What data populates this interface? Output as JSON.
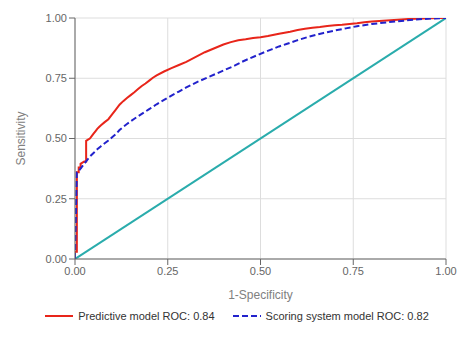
{
  "chart_data": {
    "type": "line",
    "title": "",
    "xlabel": "1-Specificity",
    "ylabel": "Sensitivity",
    "xlim": [
      0.0,
      1.0
    ],
    "ylim": [
      0.0,
      1.0
    ],
    "xticks": [
      {
        "value": 0.0,
        "label": "0.00"
      },
      {
        "value": 0.25,
        "label": "0.25"
      },
      {
        "value": 0.5,
        "label": "0.50"
      },
      {
        "value": 0.75,
        "label": "0.75"
      },
      {
        "value": 1.0,
        "label": "1.00"
      }
    ],
    "yticks": [
      {
        "value": 0.0,
        "label": "0.00"
      },
      {
        "value": 0.25,
        "label": "0.25"
      },
      {
        "value": 0.5,
        "label": "0.50"
      },
      {
        "value": 0.75,
        "label": "0.75"
      },
      {
        "value": 1.0,
        "label": "1.00"
      }
    ],
    "grid": true,
    "legend": "bottom",
    "series": [
      {
        "color": "#2aacac",
        "line_style": "solid",
        "x": [
          0,
          1
        ],
        "values": [
          0,
          1
        ]
      },
      {
        "name": "Predictive model ROC: 0.84",
        "color": "#e8251a",
        "line_style": "solid",
        "x": [
          0.0,
          0.0,
          0.005,
          0.005,
          0.01,
          0.01,
          0.015,
          0.015,
          0.02,
          0.025,
          0.03,
          0.03,
          0.035,
          0.04,
          0.045,
          0.05,
          0.055,
          0.06,
          0.065,
          0.07,
          0.08,
          0.09,
          0.1,
          0.11,
          0.12,
          0.13,
          0.14,
          0.15,
          0.16,
          0.17,
          0.18,
          0.19,
          0.2,
          0.21,
          0.22,
          0.24,
          0.26,
          0.28,
          0.3,
          0.35,
          0.4,
          0.42,
          0.44,
          0.46,
          0.48,
          0.5,
          0.52,
          0.55,
          0.58,
          0.6,
          0.62,
          0.64,
          0.66,
          0.68,
          0.7,
          0.72,
          0.74,
          0.76,
          0.78,
          0.8,
          0.82,
          0.84,
          0.86,
          0.88,
          0.9,
          0.92,
          0.94,
          0.96,
          0.98,
          1.0
        ],
        "values": [
          0.0,
          0.03,
          0.03,
          0.36,
          0.36,
          0.38,
          0.38,
          0.395,
          0.4,
          0.405,
          0.405,
          0.49,
          0.495,
          0.5,
          0.51,
          0.52,
          0.53,
          0.54,
          0.548,
          0.555,
          0.568,
          0.58,
          0.6,
          0.62,
          0.64,
          0.655,
          0.668,
          0.68,
          0.692,
          0.705,
          0.718,
          0.728,
          0.74,
          0.752,
          0.762,
          0.778,
          0.792,
          0.805,
          0.818,
          0.858,
          0.89,
          0.9,
          0.908,
          0.912,
          0.917,
          0.92,
          0.925,
          0.935,
          0.943,
          0.95,
          0.955,
          0.96,
          0.963,
          0.967,
          0.97,
          0.972,
          0.975,
          0.978,
          0.982,
          0.985,
          0.988,
          0.99,
          0.992,
          0.994,
          0.996,
          0.997,
          0.998,
          0.999,
          1.0,
          1.0
        ]
      },
      {
        "name": "Scoring system model ROC: 0.82",
        "color": "#2222cc",
        "line_style": "dashed",
        "x": [
          0.0,
          0.0,
          0.005,
          0.01,
          0.015,
          0.02,
          0.025,
          0.03,
          0.035,
          0.04,
          0.05,
          0.06,
          0.07,
          0.08,
          0.09,
          0.1,
          0.11,
          0.12,
          0.13,
          0.14,
          0.16,
          0.18,
          0.2,
          0.22,
          0.24,
          0.26,
          0.28,
          0.3,
          0.33,
          0.36,
          0.4,
          0.43,
          0.45,
          0.47,
          0.49,
          0.51,
          0.53,
          0.55,
          0.57,
          0.6,
          0.63,
          0.65,
          0.67,
          0.7,
          0.73,
          0.76,
          0.8,
          0.84,
          0.88,
          0.92,
          0.96,
          1.0
        ],
        "values": [
          0.0,
          0.025,
          0.36,
          0.365,
          0.375,
          0.385,
          0.395,
          0.405,
          0.415,
          0.425,
          0.44,
          0.455,
          0.468,
          0.48,
          0.492,
          0.505,
          0.518,
          0.535,
          0.548,
          0.56,
          0.582,
          0.602,
          0.622,
          0.642,
          0.66,
          0.678,
          0.695,
          0.712,
          0.735,
          0.755,
          0.782,
          0.802,
          0.818,
          0.832,
          0.845,
          0.858,
          0.87,
          0.882,
          0.892,
          0.908,
          0.922,
          0.93,
          0.938,
          0.948,
          0.957,
          0.966,
          0.975,
          0.982,
          0.988,
          0.994,
          0.998,
          1.0
        ]
      }
    ]
  }
}
